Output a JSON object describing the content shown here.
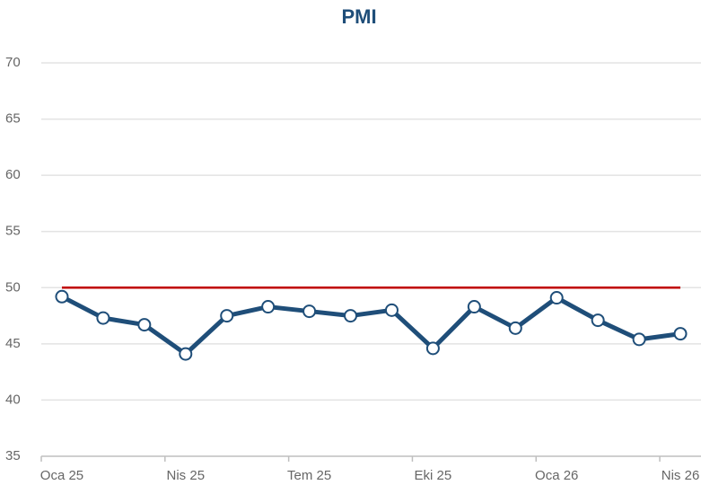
{
  "chart_data": {
    "type": "line",
    "title": "PMI",
    "categories": [
      "Oca 25",
      null,
      null,
      "Nis 25",
      null,
      null,
      "Tem 25",
      null,
      null,
      "Eki 25",
      null,
      null,
      "Oca 26",
      null,
      null,
      "Nis 26"
    ],
    "values": [
      49.2,
      47.3,
      46.7,
      44.1,
      47.5,
      48.3,
      47.9,
      47.5,
      48.0,
      44.6,
      48.3,
      46.4,
      49.1,
      47.1,
      45.4,
      45.9
    ],
    "color": "#1f4e79",
    "reference": {
      "value": 50,
      "color": "#c00000"
    },
    "ylim": [
      35,
      70
    ],
    "yticks": [
      35,
      40,
      45,
      50,
      55,
      60,
      65,
      70
    ],
    "grid": true
  }
}
